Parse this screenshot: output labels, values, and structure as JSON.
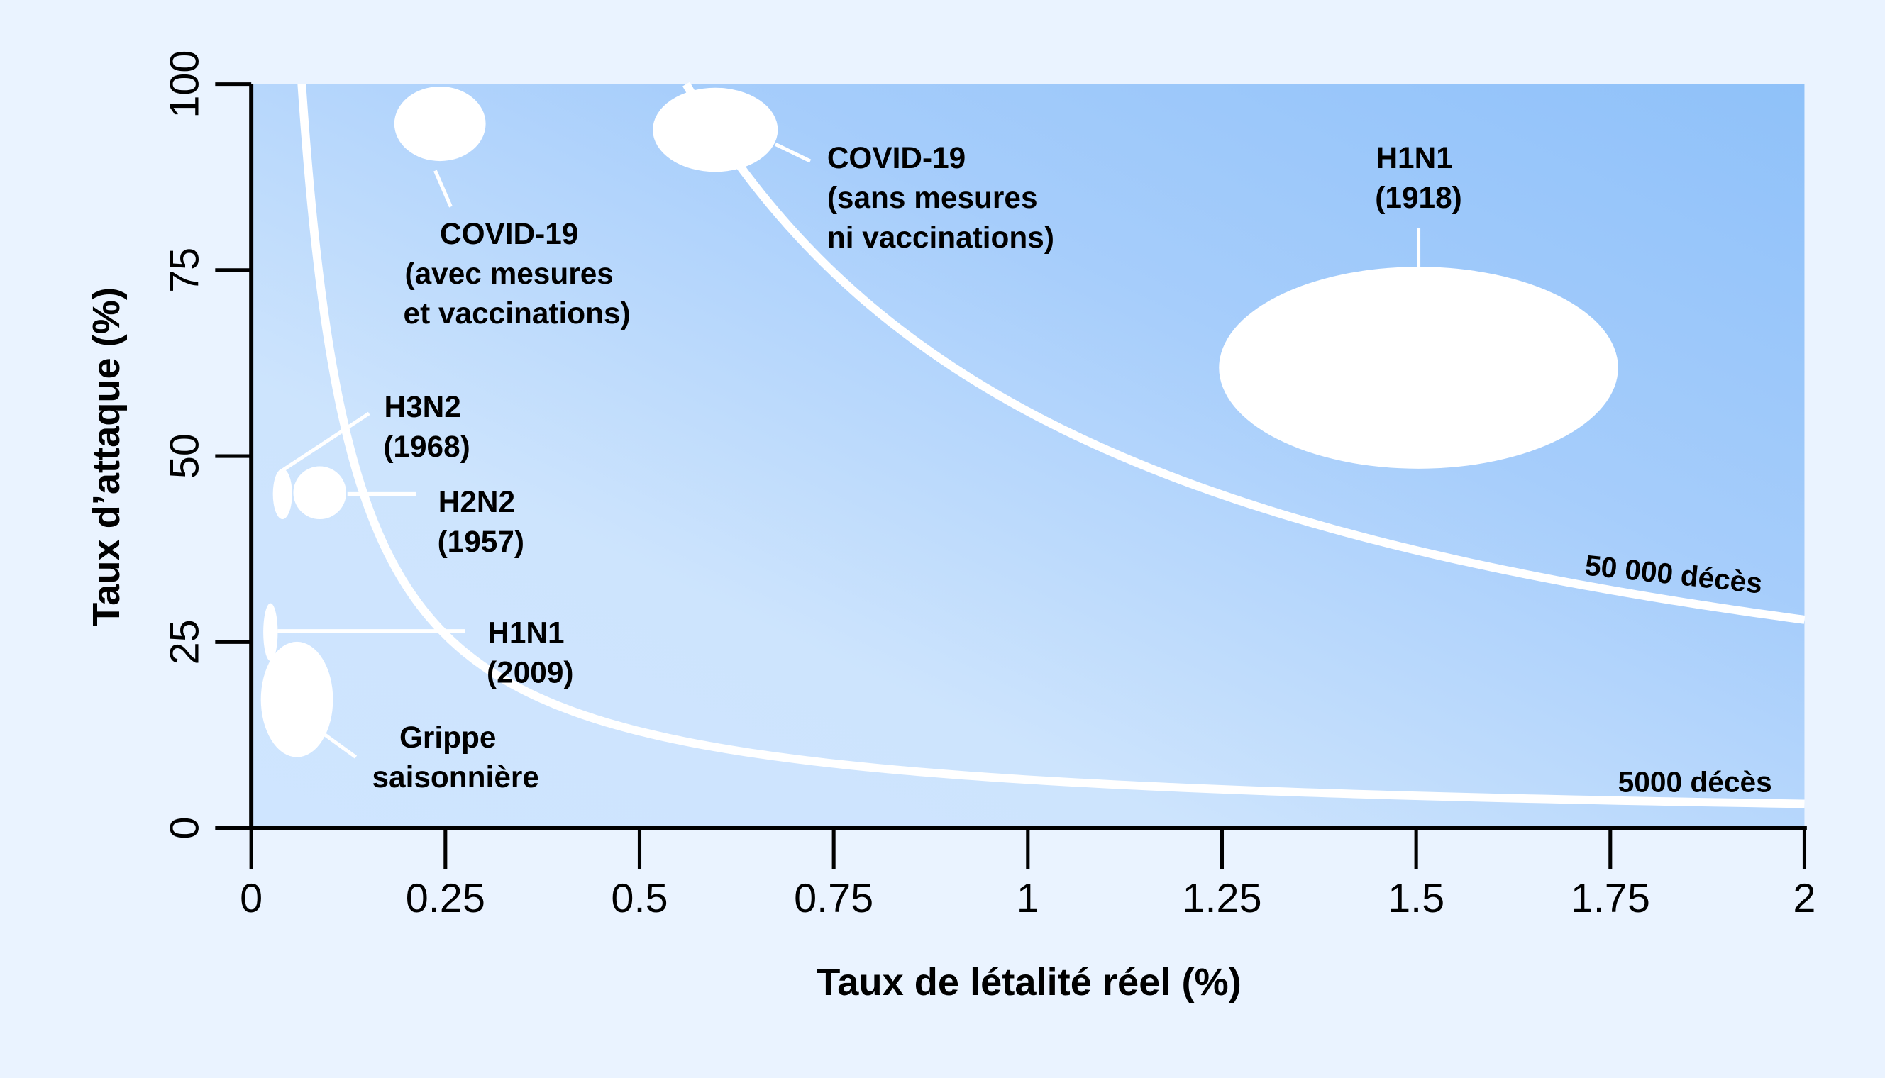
{
  "colors": {
    "page_bg": "#eaf3ff",
    "plot_gradient_light": "#d6e9ff",
    "plot_gradient_mid": "#b3d5fb",
    "plot_gradient_dark": "#8ec2fa",
    "curve": "#ffffff",
    "bubble": "#ffffff",
    "axis": "#000000"
  },
  "chart_data": {
    "type": "scatter",
    "title": "",
    "xlabel": "Taux de létalité réel (%)",
    "ylabel": "Taux d’attaque (%)",
    "xlim": [
      0,
      2
    ],
    "ylim": [
      0,
      100
    ],
    "grid": false,
    "x_ticks": [
      "0",
      "0.25",
      "0.5",
      "0.75",
      "1",
      "1.25",
      "1.5",
      "1.75",
      "2"
    ],
    "y_ticks": [
      "0",
      "25",
      "50",
      "75",
      "100"
    ],
    "iso_curves": [
      {
        "label": "5000 décès",
        "k": 6.5,
        "description": "attack_rate × CFR ≈ 6.5"
      },
      {
        "label": "50 000 décès",
        "k": 56,
        "description": "attack_rate × CFR ≈ 56"
      }
    ],
    "series": [
      {
        "name": "COVID-19 (avec mesures et vaccinations)",
        "label_lines": [
          "COVID-19",
          "(avec mesures",
          "et vaccinations)"
        ],
        "cfr": [
          0.19,
          0.31
        ],
        "attack": [
          90,
          100
        ],
        "cx": 0.243,
        "cy": 94
      },
      {
        "name": "COVID-19 (sans mesures ni vaccinations)",
        "label_lines": [
          "COVID-19",
          "(sans mesures",
          "ni vaccinations)"
        ],
        "cfr": [
          0.52,
          0.68
        ],
        "attack": [
          87,
          99
        ],
        "cx": 0.6,
        "cy": 94
      },
      {
        "name": "H1N1 (1918)",
        "label_lines": [
          "H1N1",
          "(1918)"
        ],
        "cfr": [
          1.24,
          1.76
        ],
        "attack": [
          48,
          75
        ],
        "cx": 1.5,
        "cy": 62
      },
      {
        "name": "H3N2 (1968)",
        "label_lines": [
          "H3N2",
          "(1968)"
        ],
        "cfr": [
          0.03,
          0.05
        ],
        "attack": [
          41,
          48
        ],
        "cx": 0.04,
        "cy": 45
      },
      {
        "name": "H2N2 (1957)",
        "label_lines": [
          "H2N2",
          "(1957)"
        ],
        "cfr": [
          0.06,
          0.12
        ],
        "attack": [
          41,
          48
        ],
        "cx": 0.09,
        "cy": 45
      },
      {
        "name": "H1N1 (2009)",
        "label_lines": [
          "H1N1",
          "(2009)"
        ],
        "cfr": [
          0.02,
          0.04
        ],
        "attack": [
          23,
          31
        ],
        "cx": 0.03,
        "cy": 27
      },
      {
        "name": "Grippe saisonnière",
        "label_lines": [
          "Grippe",
          "saisonnière"
        ],
        "cfr": [
          0.01,
          0.1
        ],
        "attack": [
          10,
          25
        ],
        "cx": 0.06,
        "cy": 17
      }
    ]
  }
}
